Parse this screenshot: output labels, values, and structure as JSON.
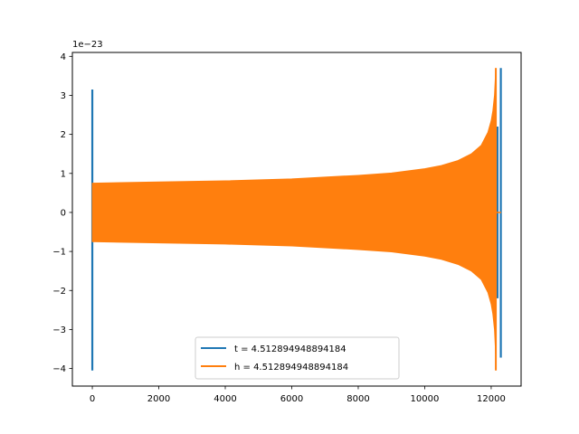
{
  "chart_data": {
    "type": "line",
    "title": "",
    "xlabel": "",
    "ylabel": "",
    "y_offset_text": "1e−23",
    "xlim": [
      -600,
      12900
    ],
    "ylim": [
      -4.45,
      4.1
    ],
    "x_ticks": [
      0,
      2000,
      4000,
      6000,
      8000,
      10000,
      12000
    ],
    "x_tick_labels": [
      "0",
      "2000",
      "4000",
      "6000",
      "8000",
      "10000",
      "12000"
    ],
    "y_ticks": [
      -4,
      -3,
      -2,
      -1,
      0,
      1,
      2,
      3,
      4
    ],
    "y_tick_labels": [
      "−4",
      "−3",
      "−2",
      "−1",
      "0",
      "1",
      "2",
      "3",
      "4"
    ],
    "grid": false,
    "legend_position": "lower-center",
    "series": [
      {
        "name": "t = 4.512894948894184",
        "color": "#1f77b4",
        "spikes": [
          {
            "x": 0,
            "min": -4.05,
            "max": 3.15
          },
          {
            "x": 12290,
            "min": -3.72,
            "max": 3.7
          }
        ],
        "dense_oscillation": {
          "x_start": 12100,
          "x_end": 12220,
          "envelope": 2.2
        }
      },
      {
        "name": "h = 4.512894948894184",
        "color": "#ff7f0e",
        "envelope": {
          "x": [
            0,
            2000,
            4000,
            6000,
            8000,
            9000,
            10000,
            10500,
            11000,
            11400,
            11700,
            11900,
            12000,
            12050,
            12100,
            12140
          ],
          "amplitude": [
            0.75,
            0.78,
            0.81,
            0.86,
            0.95,
            1.01,
            1.12,
            1.2,
            1.33,
            1.5,
            1.72,
            2.05,
            2.35,
            2.6,
            3.0,
            3.7
          ]
        },
        "end_peaks": {
          "x": 12140,
          "max": 3.7,
          "min": -4.05
        },
        "tail": {
          "x_start": 12140,
          "x_end": 12300,
          "value": 0
        }
      }
    ]
  }
}
